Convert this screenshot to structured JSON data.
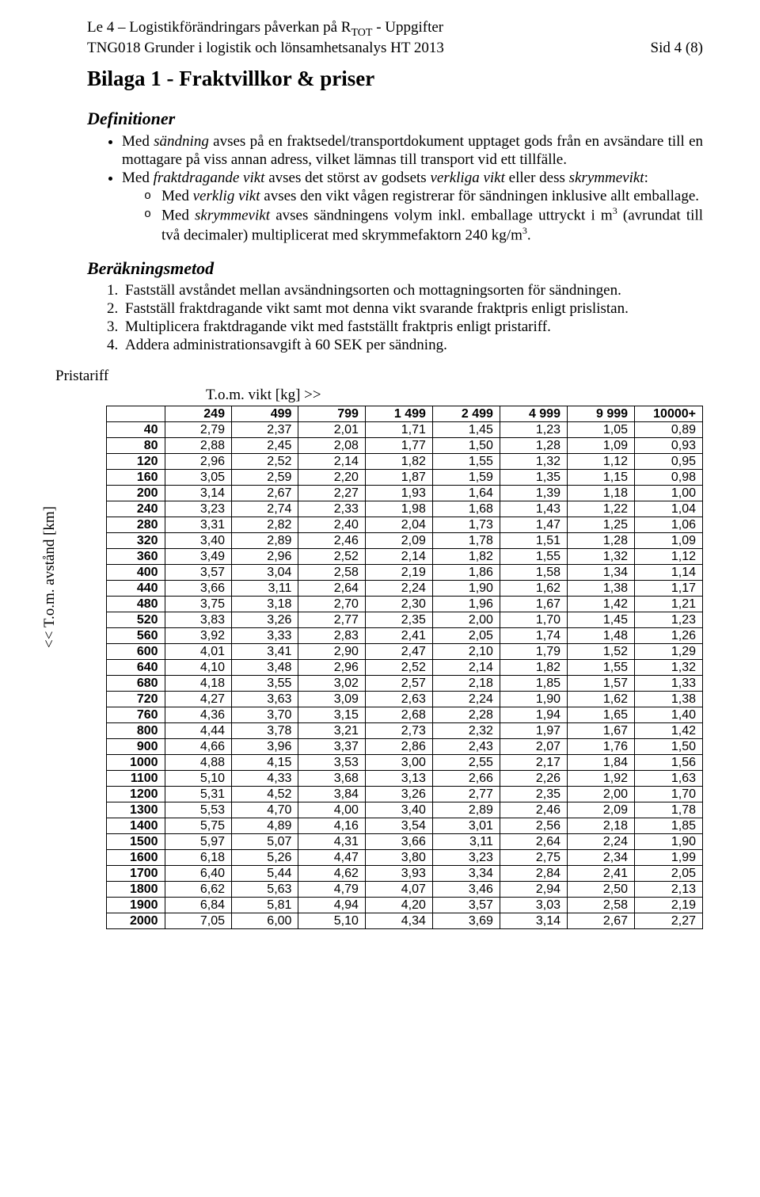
{
  "header": {
    "line1_pre": "Le 4 – Logistikförändringars påverkan på R",
    "line1_sub": "TOT",
    "line1_post": " - Uppgifter",
    "line2_left": "TNG018 Grunder i logistik och lönsamhetsanalys HT 2013",
    "line2_right": "Sid 4 (8)"
  },
  "title": "Bilaga 1 - Fraktvillkor & priser",
  "definitions": {
    "heading": "Definitioner",
    "b1_pre": "Med ",
    "b1_em": "sändning",
    "b1_post": " avses på en fraktsedel/transportdokument upptaget gods från en avsändare till en mottagare på viss annan adress, vilket lämnas till transport vid ett tillfälle.",
    "b2_pre": "Med ",
    "b2_em1": "fraktdragande vikt",
    "b2_mid1": " avses det störst av godsets ",
    "b2_em2": "verkliga vikt",
    "b2_mid2": " eller dess ",
    "b2_em3": "skrymmevikt",
    "b2_post": ":",
    "s1_pre": "Med ",
    "s1_em": "verklig vikt",
    "s1_post": " avses den vikt vågen registrerar för sändningen inklusive allt emballage.",
    "s2_pre": "Med ",
    "s2_em": "skrymmevikt",
    "s2_mid": " avses sändningens volym inkl. emballage uttryckt i m",
    "s2_sup1": "3",
    "s2_mid2": " (avrundat till två decimaler) multiplicerat med skrymmefaktorn 240 kg/m",
    "s2_sup2": "3",
    "s2_post": "."
  },
  "method": {
    "heading": "Beräkningsmetod",
    "n1": "Fastställ avståndet mellan avsändningsorten och mottagningsorten för sändningen.",
    "n2": "Fastställ fraktdragande vikt samt mot denna vikt svarande fraktpris enligt prislistan.",
    "n3": "Multiplicera fraktdragande vikt med fastställt fraktpris enligt pristariff.",
    "n4": "Addera administrationsavgift à 60 SEK per sändning."
  },
  "tariff": {
    "label": "Pristariff",
    "top_label": "T.o.m. vikt [kg]   >>",
    "vert_label": "<<   T.o.m. avstånd [km]",
    "weight_headers": [
      "249",
      "499",
      "799",
      "1 499",
      "2 499",
      "4 999",
      "9 999",
      "10000+"
    ],
    "rows": [
      {
        "d": "40",
        "v": [
          "2,79",
          "2,37",
          "2,01",
          "1,71",
          "1,45",
          "1,23",
          "1,05",
          "0,89"
        ]
      },
      {
        "d": "80",
        "v": [
          "2,88",
          "2,45",
          "2,08",
          "1,77",
          "1,50",
          "1,28",
          "1,09",
          "0,93"
        ]
      },
      {
        "d": "120",
        "v": [
          "2,96",
          "2,52",
          "2,14",
          "1,82",
          "1,55",
          "1,32",
          "1,12",
          "0,95"
        ]
      },
      {
        "d": "160",
        "v": [
          "3,05",
          "2,59",
          "2,20",
          "1,87",
          "1,59",
          "1,35",
          "1,15",
          "0,98"
        ]
      },
      {
        "d": "200",
        "v": [
          "3,14",
          "2,67",
          "2,27",
          "1,93",
          "1,64",
          "1,39",
          "1,18",
          "1,00"
        ]
      },
      {
        "d": "240",
        "v": [
          "3,23",
          "2,74",
          "2,33",
          "1,98",
          "1,68",
          "1,43",
          "1,22",
          "1,04"
        ]
      },
      {
        "d": "280",
        "v": [
          "3,31",
          "2,82",
          "2,40",
          "2,04",
          "1,73",
          "1,47",
          "1,25",
          "1,06"
        ]
      },
      {
        "d": "320",
        "v": [
          "3,40",
          "2,89",
          "2,46",
          "2,09",
          "1,78",
          "1,51",
          "1,28",
          "1,09"
        ]
      },
      {
        "d": "360",
        "v": [
          "3,49",
          "2,96",
          "2,52",
          "2,14",
          "1,82",
          "1,55",
          "1,32",
          "1,12"
        ]
      },
      {
        "d": "400",
        "v": [
          "3,57",
          "3,04",
          "2,58",
          "2,19",
          "1,86",
          "1,58",
          "1,34",
          "1,14"
        ]
      },
      {
        "d": "440",
        "v": [
          "3,66",
          "3,11",
          "2,64",
          "2,24",
          "1,90",
          "1,62",
          "1,38",
          "1,17"
        ]
      },
      {
        "d": "480",
        "v": [
          "3,75",
          "3,18",
          "2,70",
          "2,30",
          "1,96",
          "1,67",
          "1,42",
          "1,21"
        ]
      },
      {
        "d": "520",
        "v": [
          "3,83",
          "3,26",
          "2,77",
          "2,35",
          "2,00",
          "1,70",
          "1,45",
          "1,23"
        ]
      },
      {
        "d": "560",
        "v": [
          "3,92",
          "3,33",
          "2,83",
          "2,41",
          "2,05",
          "1,74",
          "1,48",
          "1,26"
        ]
      },
      {
        "d": "600",
        "v": [
          "4,01",
          "3,41",
          "2,90",
          "2,47",
          "2,10",
          "1,79",
          "1,52",
          "1,29"
        ]
      },
      {
        "d": "640",
        "v": [
          "4,10",
          "3,48",
          "2,96",
          "2,52",
          "2,14",
          "1,82",
          "1,55",
          "1,32"
        ]
      },
      {
        "d": "680",
        "v": [
          "4,18",
          "3,55",
          "3,02",
          "2,57",
          "2,18",
          "1,85",
          "1,57",
          "1,33"
        ]
      },
      {
        "d": "720",
        "v": [
          "4,27",
          "3,63",
          "3,09",
          "2,63",
          "2,24",
          "1,90",
          "1,62",
          "1,38"
        ]
      },
      {
        "d": "760",
        "v": [
          "4,36",
          "3,70",
          "3,15",
          "2,68",
          "2,28",
          "1,94",
          "1,65",
          "1,40"
        ]
      },
      {
        "d": "800",
        "v": [
          "4,44",
          "3,78",
          "3,21",
          "2,73",
          "2,32",
          "1,97",
          "1,67",
          "1,42"
        ]
      },
      {
        "d": "900",
        "v": [
          "4,66",
          "3,96",
          "3,37",
          "2,86",
          "2,43",
          "2,07",
          "1,76",
          "1,50"
        ]
      },
      {
        "d": "1000",
        "v": [
          "4,88",
          "4,15",
          "3,53",
          "3,00",
          "2,55",
          "2,17",
          "1,84",
          "1,56"
        ]
      },
      {
        "d": "1100",
        "v": [
          "5,10",
          "4,33",
          "3,68",
          "3,13",
          "2,66",
          "2,26",
          "1,92",
          "1,63"
        ]
      },
      {
        "d": "1200",
        "v": [
          "5,31",
          "4,52",
          "3,84",
          "3,26",
          "2,77",
          "2,35",
          "2,00",
          "1,70"
        ]
      },
      {
        "d": "1300",
        "v": [
          "5,53",
          "4,70",
          "4,00",
          "3,40",
          "2,89",
          "2,46",
          "2,09",
          "1,78"
        ]
      },
      {
        "d": "1400",
        "v": [
          "5,75",
          "4,89",
          "4,16",
          "3,54",
          "3,01",
          "2,56",
          "2,18",
          "1,85"
        ]
      },
      {
        "d": "1500",
        "v": [
          "5,97",
          "5,07",
          "4,31",
          "3,66",
          "3,11",
          "2,64",
          "2,24",
          "1,90"
        ]
      },
      {
        "d": "1600",
        "v": [
          "6,18",
          "5,26",
          "4,47",
          "3,80",
          "3,23",
          "2,75",
          "2,34",
          "1,99"
        ]
      },
      {
        "d": "1700",
        "v": [
          "6,40",
          "5,44",
          "4,62",
          "3,93",
          "3,34",
          "2,84",
          "2,41",
          "2,05"
        ]
      },
      {
        "d": "1800",
        "v": [
          "6,62",
          "5,63",
          "4,79",
          "4,07",
          "3,46",
          "2,94",
          "2,50",
          "2,13"
        ]
      },
      {
        "d": "1900",
        "v": [
          "6,84",
          "5,81",
          "4,94",
          "4,20",
          "3,57",
          "3,03",
          "2,58",
          "2,19"
        ]
      },
      {
        "d": "2000",
        "v": [
          "7,05",
          "6,00",
          "5,10",
          "4,34",
          "3,69",
          "3,14",
          "2,67",
          "2,27"
        ]
      }
    ]
  }
}
